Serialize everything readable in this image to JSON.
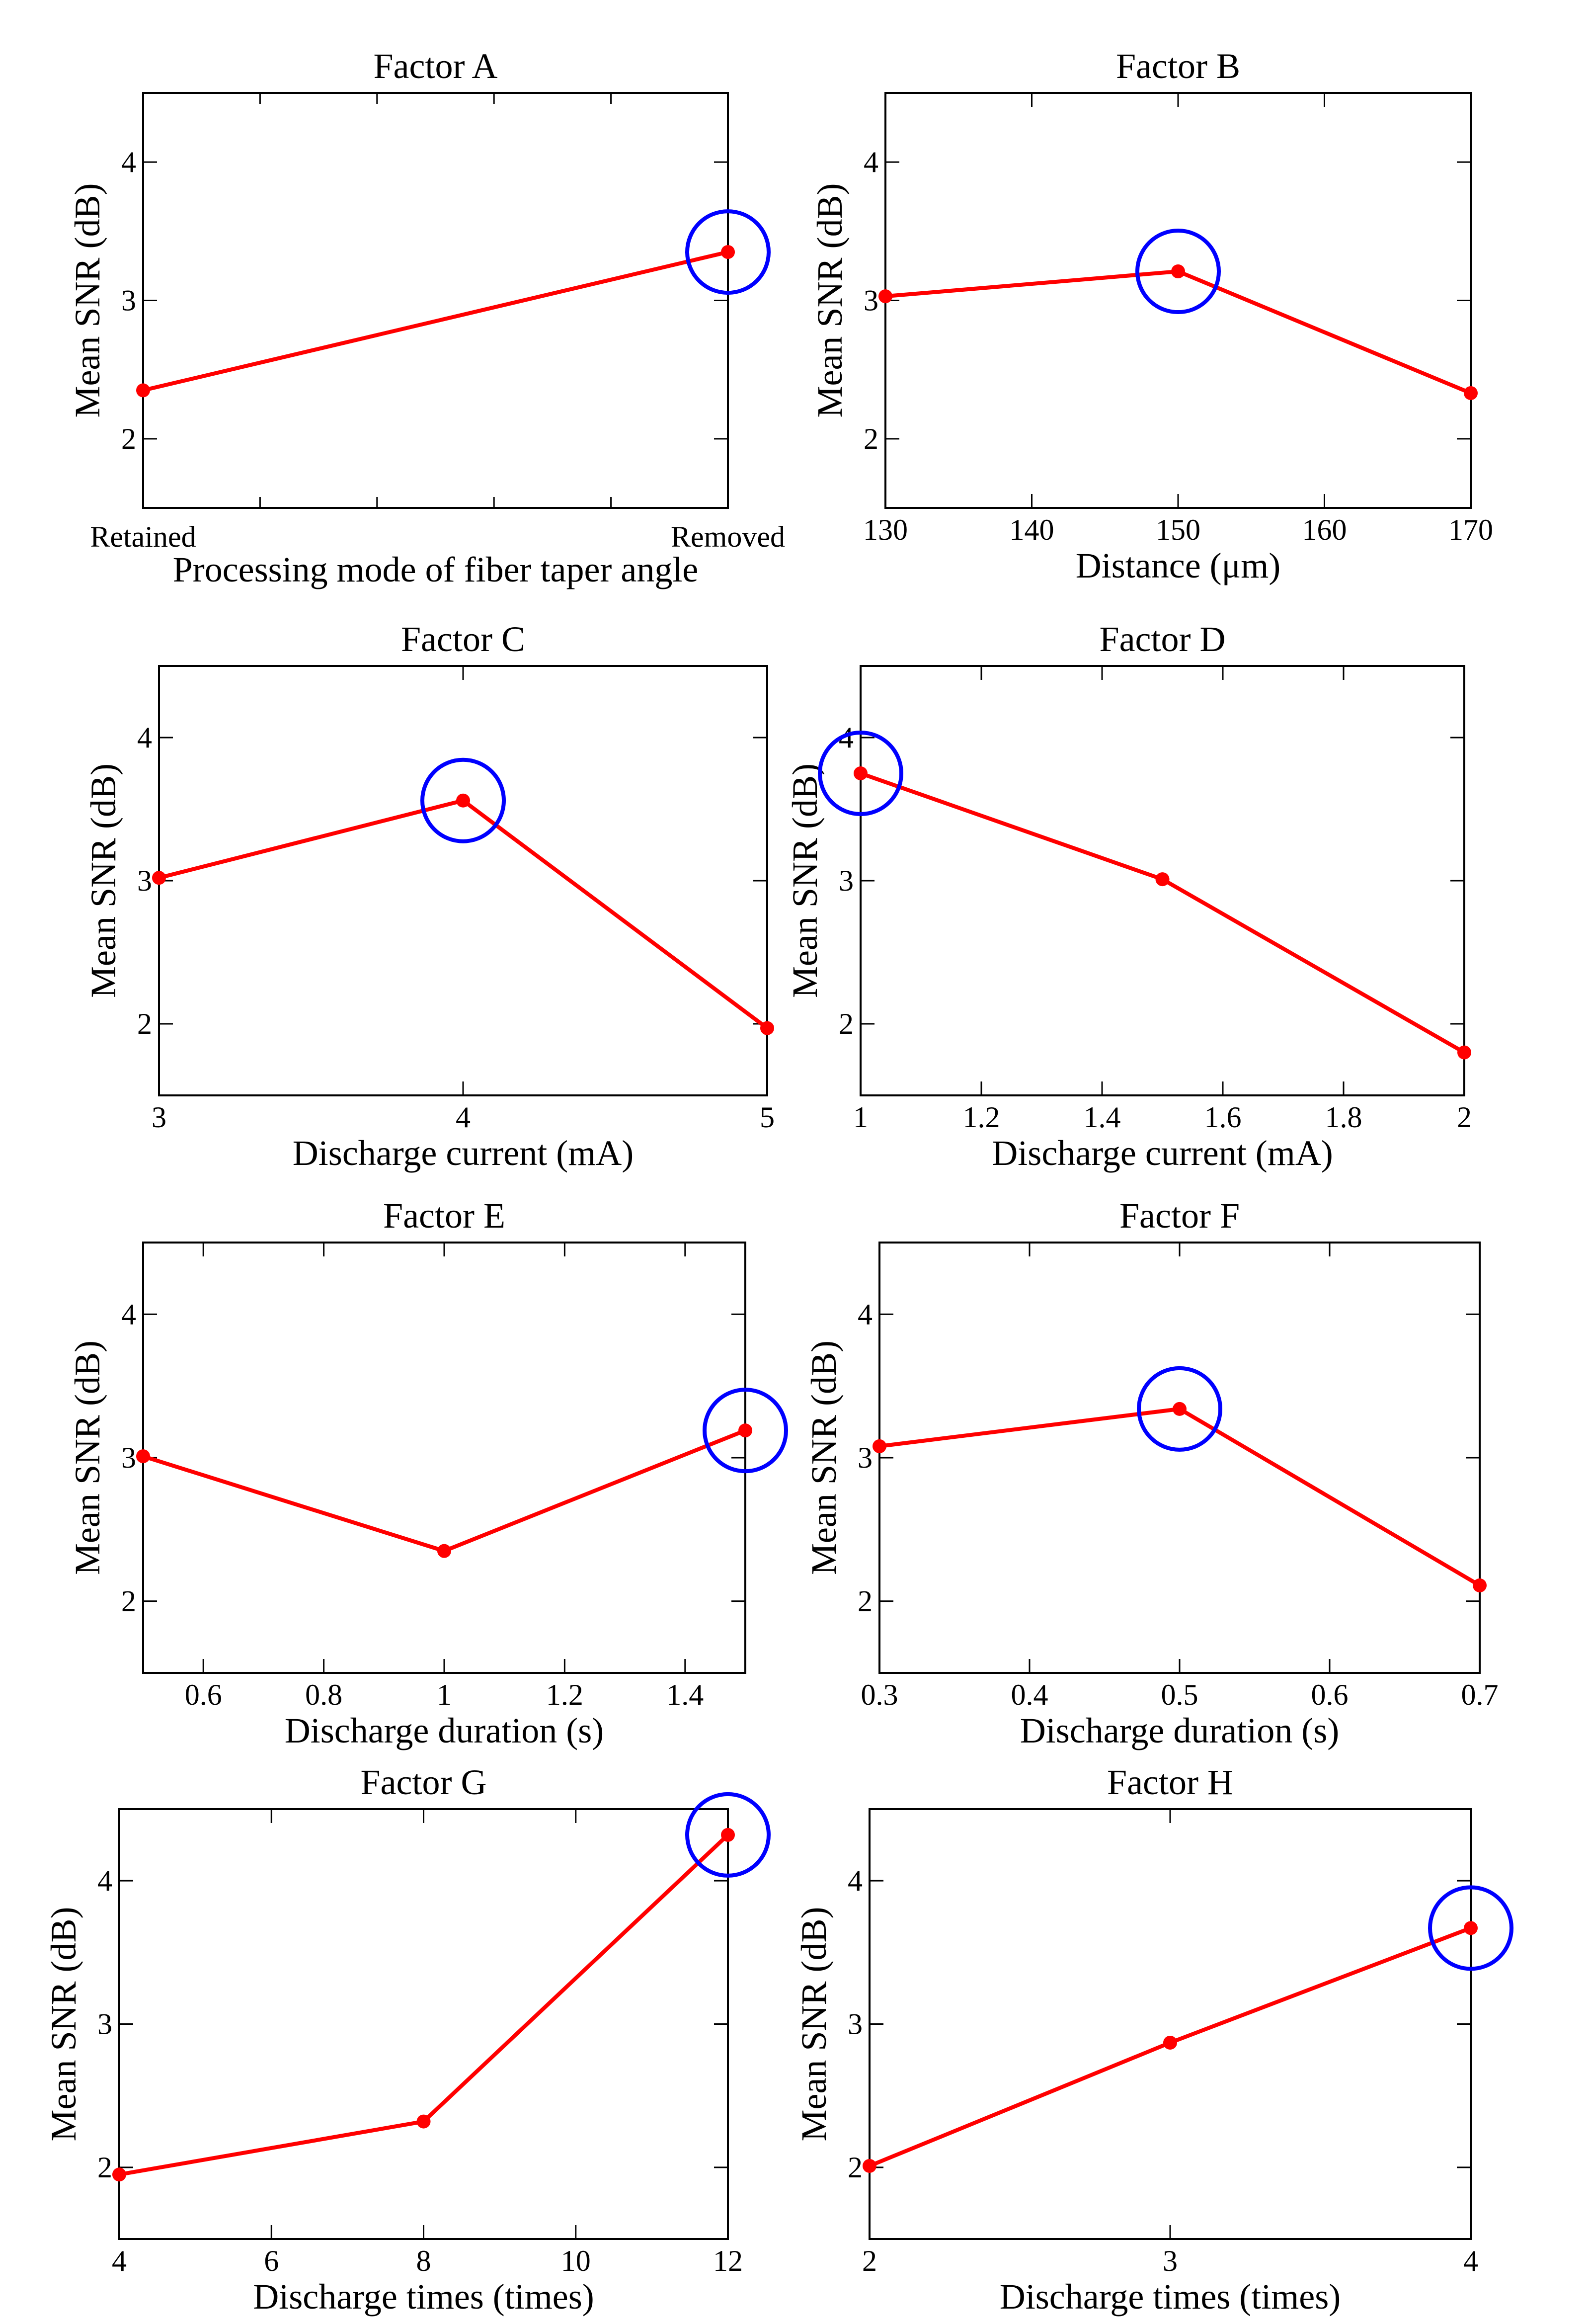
{
  "figure": {
    "line_color": "#ff0000",
    "highlight_color": "#0000ff",
    "background": "#ffffff"
  },
  "chart_data": [
    {
      "type": "line",
      "title": "Factor A",
      "xlabel": "Processing mode of fiber taper angle",
      "ylabel": "Mean SNR (dB)",
      "x_type": "category",
      "categories": [
        "Retained",
        "Removed"
      ],
      "x": [
        0,
        1
      ],
      "values": [
        2.35,
        3.35
      ],
      "xlim": [
        0,
        1
      ],
      "ylim": [
        1.5,
        4.5
      ],
      "yticks": [
        2,
        3,
        4
      ],
      "ytick_labels": [
        "2",
        "3",
        "4"
      ],
      "highlight_index": 1
    },
    {
      "type": "line",
      "title": "Factor B",
      "xlabel": "Distance (μm)",
      "ylabel": "Mean SNR (dB)",
      "x": [
        130,
        150,
        170
      ],
      "values": [
        3.03,
        3.21,
        2.33
      ],
      "xlim": [
        130,
        170
      ],
      "xticks": [
        130,
        140,
        150,
        160,
        170
      ],
      "xtick_labels": [
        "130",
        "140",
        "150",
        "160",
        "170"
      ],
      "ylim": [
        1.5,
        4.5
      ],
      "yticks": [
        2,
        3,
        4
      ],
      "ytick_labels": [
        "2",
        "3",
        "4"
      ],
      "highlight_index": 1
    },
    {
      "type": "line",
      "title": "Factor C",
      "xlabel": "Discharge current (mA)",
      "ylabel": "Mean SNR (dB)",
      "x": [
        3,
        4,
        5
      ],
      "values": [
        3.02,
        3.56,
        1.97
      ],
      "xlim": [
        3,
        5
      ],
      "xticks": [
        3,
        4,
        5
      ],
      "xtick_labels": [
        "3",
        "4",
        "5"
      ],
      "ylim": [
        1.5,
        4.5
      ],
      "yticks": [
        2,
        3,
        4
      ],
      "ytick_labels": [
        "2",
        "3",
        "4"
      ],
      "highlight_index": 1
    },
    {
      "type": "line",
      "title": "Factor D",
      "xlabel": "Discharge current (mA)",
      "ylabel": "Mean SNR (dB)",
      "x": [
        1,
        1.5,
        2
      ],
      "values": [
        3.75,
        3.01,
        1.8
      ],
      "xlim": [
        1,
        2
      ],
      "xticks": [
        1,
        1.2,
        1.4,
        1.6,
        1.8,
        2
      ],
      "xtick_labels": [
        "1",
        "1.2",
        "1.4",
        "1.6",
        "1.8",
        "2"
      ],
      "ylim": [
        1.5,
        4.5
      ],
      "yticks": [
        2,
        3,
        4
      ],
      "ytick_labels": [
        "2",
        "3",
        "4"
      ],
      "highlight_index": 0
    },
    {
      "type": "line",
      "title": "Factor E",
      "xlabel": "Discharge duration (s)",
      "ylabel": "Mean SNR (dB)",
      "x": [
        0.5,
        1,
        1.5
      ],
      "values": [
        3.01,
        2.35,
        3.19
      ],
      "xlim": [
        0.5,
        1.5
      ],
      "xticks": [
        0.6,
        0.8,
        1,
        1.2,
        1.4
      ],
      "xtick_labels": [
        "0.6",
        "0.8",
        "1",
        "1.2",
        "1.4"
      ],
      "ylim": [
        1.5,
        4.5
      ],
      "yticks": [
        2,
        3,
        4
      ],
      "ytick_labels": [
        "2",
        "3",
        "4"
      ],
      "highlight_index": 2
    },
    {
      "type": "line",
      "title": "Factor F",
      "xlabel": "Discharge duration (s)",
      "ylabel": "Mean SNR (dB)",
      "x": [
        0.3,
        0.5,
        0.7
      ],
      "values": [
        3.08,
        3.34,
        2.11
      ],
      "xlim": [
        0.3,
        0.7
      ],
      "xticks": [
        0.3,
        0.4,
        0.5,
        0.6,
        0.7
      ],
      "xtick_labels": [
        "0.3",
        "0.4",
        "0.5",
        "0.6",
        "0.7"
      ],
      "ylim": [
        1.5,
        4.5
      ],
      "yticks": [
        2,
        3,
        4
      ],
      "ytick_labels": [
        "2",
        "3",
        "4"
      ],
      "highlight_index": 1
    },
    {
      "type": "line",
      "title": "Factor G",
      "xlabel": "Discharge times (times)",
      "ylabel": "Mean SNR (dB)",
      "x": [
        4,
        8,
        12
      ],
      "values": [
        1.95,
        2.32,
        4.32
      ],
      "xlim": [
        4,
        12
      ],
      "xticks": [
        4,
        6,
        8,
        10,
        12
      ],
      "xtick_labels": [
        "4",
        "6",
        "8",
        "10",
        "12"
      ],
      "ylim": [
        1.5,
        4.5
      ],
      "yticks": [
        2,
        3,
        4
      ],
      "ytick_labels": [
        "2",
        "3",
        "4"
      ],
      "highlight_index": 2
    },
    {
      "type": "line",
      "title": "Factor H",
      "xlabel": "Discharge times (times)",
      "ylabel": "Mean SNR (dB)",
      "x": [
        2,
        3,
        4
      ],
      "values": [
        2.01,
        2.87,
        3.67
      ],
      "xlim": [
        2,
        4
      ],
      "xticks": [
        2,
        3,
        4
      ],
      "xtick_labels": [
        "2",
        "3",
        "4"
      ],
      "ylim": [
        1.5,
        4.5
      ],
      "yticks": [
        2,
        3,
        4
      ],
      "ytick_labels": [
        "2",
        "3",
        "4"
      ],
      "highlight_index": 2
    }
  ]
}
